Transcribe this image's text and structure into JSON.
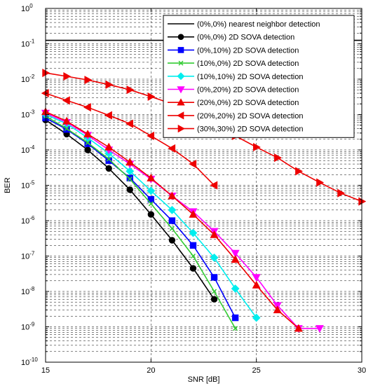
{
  "chart_data": {
    "type": "line",
    "title": "",
    "xlabel": "SNR [dB]",
    "ylabel": "BER",
    "xlim": [
      15,
      30
    ],
    "ylim": [
      1e-10,
      1
    ],
    "yscale": "log",
    "grid": "dashed major and minor",
    "legend_position": "top-right",
    "x_ticks": [
      "15",
      "20",
      "25",
      "30"
    ],
    "y_ticks": [
      {
        "base": "10",
        "exp": "0"
      },
      {
        "base": "10",
        "exp": "-1"
      },
      {
        "base": "10",
        "exp": "-2"
      },
      {
        "base": "10",
        "exp": "-3"
      },
      {
        "base": "10",
        "exp": "-4"
      },
      {
        "base": "10",
        "exp": "-5"
      },
      {
        "base": "10",
        "exp": "-6"
      },
      {
        "base": "10",
        "exp": "-7"
      },
      {
        "base": "10",
        "exp": "-8"
      },
      {
        "base": "10",
        "exp": "-9"
      },
      {
        "base": "10",
        "exp": "-10"
      }
    ],
    "series": [
      {
        "name": "(0%,0%) nearest neighbor detection",
        "color": "#000000",
        "marker": "none",
        "x": [
          15,
          30
        ],
        "y": [
          0.125,
          0.125
        ]
      },
      {
        "name": "(0%,0%) 2D SOVA detection",
        "color": "#000000",
        "marker": "circle",
        "x": [
          15,
          16,
          17,
          18,
          19,
          20,
          21,
          22,
          23
        ],
        "y": [
          0.0007,
          0.00028,
          0.0001,
          3e-05,
          7.5e-06,
          1.5e-06,
          2.8e-07,
          4.5e-08,
          6e-09
        ]
      },
      {
        "name": "(0%,10%) 2D SOVA detection",
        "color": "#0000ff",
        "marker": "square",
        "x": [
          15,
          16,
          17,
          18,
          19,
          20,
          21,
          22,
          23,
          24
        ],
        "y": [
          0.0008,
          0.00038,
          0.00015,
          5e-05,
          1.6e-05,
          4e-06,
          1e-06,
          2e-07,
          2.5e-08,
          1.8e-09
        ]
      },
      {
        "name": "(10%,0%) 2D SOVA detection",
        "color": "#33cc33",
        "marker": "x",
        "x": [
          15,
          16,
          17,
          18,
          19,
          20,
          21,
          22,
          23,
          24
        ],
        "y": [
          0.0009,
          0.0004,
          0.00016,
          5.5e-05,
          1.5e-05,
          3e-06,
          6e-07,
          1e-07,
          1e-08,
          9e-10
        ]
      },
      {
        "name": "(10%,10%) 2D SOVA detection",
        "color": "#00eeee",
        "marker": "diamond",
        "x": [
          15,
          16,
          17,
          18,
          19,
          20,
          21,
          22,
          23,
          24,
          25
        ],
        "y": [
          0.001,
          0.00055,
          0.00022,
          8e-05,
          2.5e-05,
          7e-06,
          2e-06,
          4.5e-07,
          9e-08,
          1.2e-08,
          1.8e-09
        ]
      },
      {
        "name": "(0%,20%) 2D SOVA detection",
        "color": "#ff00ff",
        "marker": "triangle-down",
        "x": [
          15,
          16,
          17,
          18,
          19,
          20,
          21,
          22,
          23,
          24,
          25,
          26,
          27,
          28
        ],
        "y": [
          0.0011,
          0.0006,
          0.00026,
          0.0001,
          4e-05,
          1.5e-05,
          5e-06,
          1.8e-06,
          5e-07,
          1.2e-07,
          2.5e-08,
          4e-09,
          9e-10,
          9e-10
        ]
      },
      {
        "name": "(20%,0%) 2D SOVA detection",
        "color": "#ee0000",
        "marker": "triangle-up",
        "x": [
          15,
          16,
          17,
          18,
          19,
          20,
          21,
          22,
          23,
          24,
          25,
          26,
          27
        ],
        "y": [
          0.0012,
          0.00065,
          0.00028,
          0.00012,
          4.5e-05,
          1.6e-05,
          5e-06,
          1.5e-06,
          4e-07,
          8e-08,
          1.5e-08,
          3e-09,
          9e-10
        ]
      },
      {
        "name": "(20%,20%) 2D SOVA detection",
        "color": "#ee0000",
        "marker": "triangle-left",
        "x": [
          15,
          16,
          17,
          18,
          19,
          20,
          21,
          22,
          23
        ],
        "y": [
          0.004,
          0.0025,
          0.0016,
          0.00095,
          0.00055,
          0.00025,
          0.00011,
          4e-05,
          1e-05
        ]
      },
      {
        "name": "(30%,30%) 2D SOVA detection",
        "color": "#ee0000",
        "marker": "triangle-right",
        "x": [
          15,
          16,
          17,
          18,
          19,
          20,
          21,
          22,
          23,
          24,
          25,
          26,
          27,
          28,
          29,
          30
        ],
        "y": [
          0.015,
          0.012,
          0.0095,
          0.007,
          0.005,
          0.0032,
          0.002,
          0.0011,
          0.00055,
          0.00025,
          0.00012,
          6e-05,
          2.5e-05,
          1.2e-05,
          6e-06,
          3.5e-06
        ]
      }
    ]
  }
}
